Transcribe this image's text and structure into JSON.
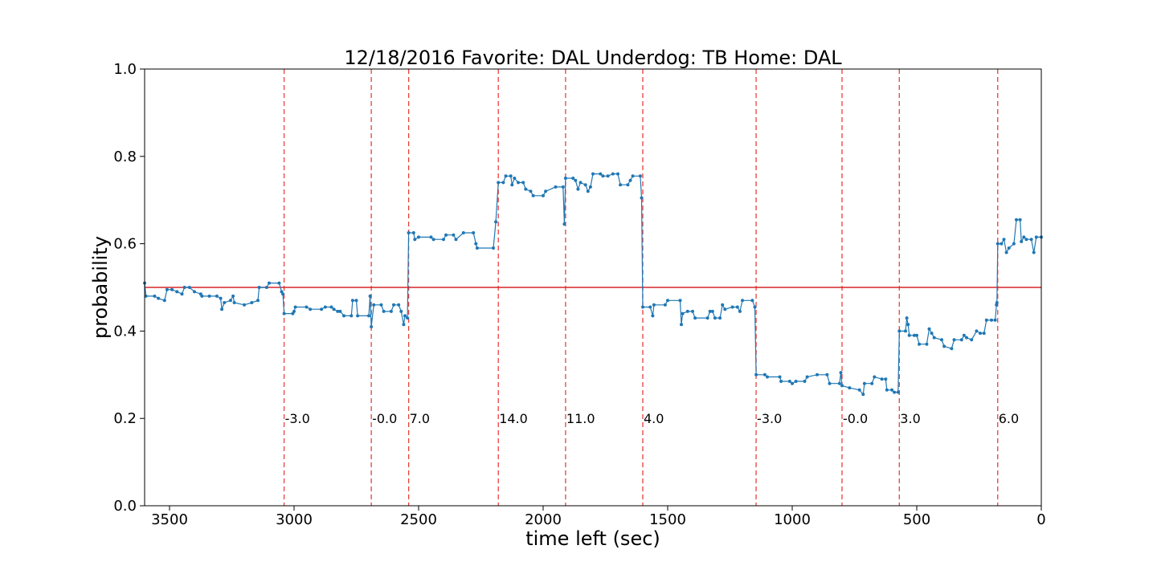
{
  "chart_data": {
    "type": "line",
    "title": "12/18/2016 Favorite: DAL Underdog: TB Home: DAL",
    "xlabel": "time left (sec)",
    "ylabel": "probability",
    "x_reversed": true,
    "xlim": [
      3600,
      0
    ],
    "ylim": [
      0.0,
      1.0
    ],
    "xticks": [
      3500,
      3000,
      2500,
      2000,
      1500,
      1000,
      500,
      0
    ],
    "xtick_labels": [
      "3500",
      "3000",
      "2500",
      "2000",
      "1500",
      "1000",
      "500",
      "0"
    ],
    "yticks": [
      0.0,
      0.2,
      0.4,
      0.6,
      0.8,
      1.0
    ],
    "ytick_labels": [
      "0.0",
      "0.2",
      "0.4",
      "0.6",
      "0.8",
      "1.0"
    ],
    "grid": false,
    "colors": {
      "series": "#1f77b4",
      "reference": "#d62728",
      "score_lines": "#e8403a"
    },
    "reference_line": {
      "y": 0.5
    },
    "score_changes": [
      {
        "x": 3040,
        "label": "-3.0"
      },
      {
        "x": 2690,
        "label": "-0.0"
      },
      {
        "x": 2540,
        "label": "7.0"
      },
      {
        "x": 2180,
        "label": "14.0"
      },
      {
        "x": 1910,
        "label": "11.0"
      },
      {
        "x": 1600,
        "label": "4.0"
      },
      {
        "x": 1145,
        "label": "-3.0"
      },
      {
        "x": 800,
        "label": "-0.0"
      },
      {
        "x": 570,
        "label": "3.0"
      },
      {
        "x": 175,
        "label": "6.0"
      }
    ],
    "annotation_y": 0.2,
    "series": [
      {
        "points": [
          [
            3600,
            0.51
          ],
          [
            3595,
            0.48
          ],
          [
            3560,
            0.48
          ],
          [
            3545,
            0.475
          ],
          [
            3520,
            0.47
          ],
          [
            3510,
            0.495
          ],
          [
            3490,
            0.495
          ],
          [
            3470,
            0.49
          ],
          [
            3450,
            0.485
          ],
          [
            3440,
            0.5
          ],
          [
            3420,
            0.5
          ],
          [
            3400,
            0.49
          ],
          [
            3375,
            0.485
          ],
          [
            3370,
            0.48
          ],
          [
            3340,
            0.48
          ],
          [
            3310,
            0.48
          ],
          [
            3295,
            0.475
          ],
          [
            3290,
            0.45
          ],
          [
            3280,
            0.465
          ],
          [
            3255,
            0.47
          ],
          [
            3245,
            0.48
          ],
          [
            3240,
            0.465
          ],
          [
            3200,
            0.46
          ],
          [
            3170,
            0.465
          ],
          [
            3145,
            0.47
          ],
          [
            3140,
            0.5
          ],
          [
            3110,
            0.5
          ],
          [
            3100,
            0.51
          ],
          [
            3060,
            0.51
          ],
          [
            3050,
            0.49
          ],
          [
            3045,
            0.485
          ],
          [
            3040,
            0.44
          ],
          [
            3005,
            0.44
          ],
          [
            3000,
            0.445
          ],
          [
            2995,
            0.455
          ],
          [
            2950,
            0.455
          ],
          [
            2935,
            0.45
          ],
          [
            2890,
            0.45
          ],
          [
            2875,
            0.455
          ],
          [
            2850,
            0.455
          ],
          [
            2840,
            0.45
          ],
          [
            2825,
            0.445
          ],
          [
            2815,
            0.445
          ],
          [
            2800,
            0.435
          ],
          [
            2770,
            0.435
          ],
          [
            2765,
            0.47
          ],
          [
            2750,
            0.47
          ],
          [
            2745,
            0.435
          ],
          [
            2700,
            0.435
          ],
          [
            2695,
            0.48
          ],
          [
            2690,
            0.41
          ],
          [
            2680,
            0.46
          ],
          [
            2650,
            0.46
          ],
          [
            2640,
            0.445
          ],
          [
            2610,
            0.445
          ],
          [
            2600,
            0.46
          ],
          [
            2580,
            0.46
          ],
          [
            2570,
            0.445
          ],
          [
            2560,
            0.415
          ],
          [
            2555,
            0.435
          ],
          [
            2545,
            0.43
          ],
          [
            2540,
            0.625
          ],
          [
            2520,
            0.625
          ],
          [
            2515,
            0.61
          ],
          [
            2500,
            0.615
          ],
          [
            2450,
            0.615
          ],
          [
            2440,
            0.61
          ],
          [
            2400,
            0.61
          ],
          [
            2390,
            0.62
          ],
          [
            2360,
            0.62
          ],
          [
            2350,
            0.61
          ],
          [
            2320,
            0.625
          ],
          [
            2280,
            0.625
          ],
          [
            2270,
            0.6
          ],
          [
            2265,
            0.59
          ],
          [
            2200,
            0.59
          ],
          [
            2190,
            0.65
          ],
          [
            2180,
            0.74
          ],
          [
            2160,
            0.74
          ],
          [
            2150,
            0.755
          ],
          [
            2130,
            0.755
          ],
          [
            2125,
            0.735
          ],
          [
            2115,
            0.75
          ],
          [
            2100,
            0.74
          ],
          [
            2080,
            0.74
          ],
          [
            2070,
            0.725
          ],
          [
            2050,
            0.72
          ],
          [
            2040,
            0.71
          ],
          [
            2000,
            0.71
          ],
          [
            1990,
            0.72
          ],
          [
            1950,
            0.73
          ],
          [
            1920,
            0.73
          ],
          [
            1915,
            0.645
          ],
          [
            1910,
            0.75
          ],
          [
            1880,
            0.75
          ],
          [
            1870,
            0.745
          ],
          [
            1860,
            0.725
          ],
          [
            1850,
            0.74
          ],
          [
            1830,
            0.735
          ],
          [
            1820,
            0.72
          ],
          [
            1810,
            0.73
          ],
          [
            1800,
            0.76
          ],
          [
            1770,
            0.76
          ],
          [
            1760,
            0.755
          ],
          [
            1740,
            0.755
          ],
          [
            1720,
            0.76
          ],
          [
            1700,
            0.76
          ],
          [
            1690,
            0.735
          ],
          [
            1660,
            0.735
          ],
          [
            1650,
            0.745
          ],
          [
            1640,
            0.755
          ],
          [
            1610,
            0.755
          ],
          [
            1605,
            0.705
          ],
          [
            1600,
            0.455
          ],
          [
            1570,
            0.455
          ],
          [
            1560,
            0.435
          ],
          [
            1555,
            0.46
          ],
          [
            1510,
            0.46
          ],
          [
            1500,
            0.47
          ],
          [
            1450,
            0.47
          ],
          [
            1445,
            0.415
          ],
          [
            1440,
            0.44
          ],
          [
            1420,
            0.445
          ],
          [
            1400,
            0.445
          ],
          [
            1390,
            0.43
          ],
          [
            1340,
            0.43
          ],
          [
            1330,
            0.445
          ],
          [
            1320,
            0.445
          ],
          [
            1310,
            0.43
          ],
          [
            1290,
            0.43
          ],
          [
            1280,
            0.46
          ],
          [
            1270,
            0.45
          ],
          [
            1240,
            0.455
          ],
          [
            1220,
            0.455
          ],
          [
            1210,
            0.445
          ],
          [
            1200,
            0.47
          ],
          [
            1160,
            0.47
          ],
          [
            1150,
            0.455
          ],
          [
            1145,
            0.3
          ],
          [
            1110,
            0.3
          ],
          [
            1100,
            0.295
          ],
          [
            1050,
            0.295
          ],
          [
            1045,
            0.285
          ],
          [
            1010,
            0.285
          ],
          [
            1000,
            0.28
          ],
          [
            985,
            0.285
          ],
          [
            950,
            0.285
          ],
          [
            940,
            0.295
          ],
          [
            900,
            0.3
          ],
          [
            860,
            0.3
          ],
          [
            850,
            0.28
          ],
          [
            810,
            0.28
          ],
          [
            805,
            0.305
          ],
          [
            800,
            0.275
          ],
          [
            770,
            0.27
          ],
          [
            730,
            0.265
          ],
          [
            715,
            0.255
          ],
          [
            710,
            0.28
          ],
          [
            680,
            0.28
          ],
          [
            670,
            0.295
          ],
          [
            640,
            0.29
          ],
          [
            625,
            0.29
          ],
          [
            620,
            0.265
          ],
          [
            600,
            0.265
          ],
          [
            590,
            0.26
          ],
          [
            575,
            0.26
          ],
          [
            570,
            0.4
          ],
          [
            545,
            0.4
          ],
          [
            540,
            0.43
          ],
          [
            535,
            0.415
          ],
          [
            530,
            0.39
          ],
          [
            510,
            0.39
          ],
          [
            500,
            0.39
          ],
          [
            490,
            0.37
          ],
          [
            460,
            0.37
          ],
          [
            450,
            0.405
          ],
          [
            440,
            0.395
          ],
          [
            430,
            0.385
          ],
          [
            400,
            0.38
          ],
          [
            390,
            0.365
          ],
          [
            360,
            0.36
          ],
          [
            350,
            0.38
          ],
          [
            320,
            0.38
          ],
          [
            310,
            0.39
          ],
          [
            300,
            0.385
          ],
          [
            280,
            0.38
          ],
          [
            260,
            0.4
          ],
          [
            245,
            0.395
          ],
          [
            230,
            0.395
          ],
          [
            220,
            0.425
          ],
          [
            200,
            0.425
          ],
          [
            185,
            0.425
          ],
          [
            180,
            0.46
          ],
          [
            178,
            0.465
          ],
          [
            175,
            0.6
          ],
          [
            160,
            0.6
          ],
          [
            150,
            0.61
          ],
          [
            140,
            0.58
          ],
          [
            130,
            0.59
          ],
          [
            110,
            0.6
          ],
          [
            100,
            0.655
          ],
          [
            85,
            0.655
          ],
          [
            80,
            0.605
          ],
          [
            70,
            0.615
          ],
          [
            60,
            0.61
          ],
          [
            40,
            0.61
          ],
          [
            30,
            0.58
          ],
          [
            20,
            0.615
          ],
          [
            0,
            0.615
          ]
        ]
      }
    ]
  }
}
